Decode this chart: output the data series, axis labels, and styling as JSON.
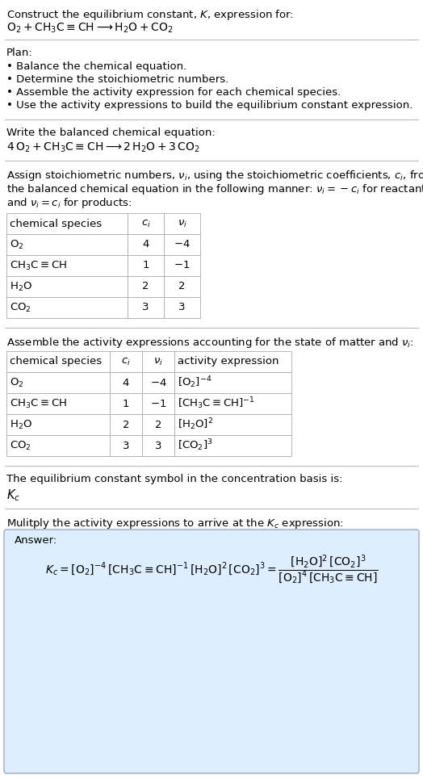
{
  "bg_color": "#ffffff",
  "title_line1": "Construct the equilibrium constant, $K$, expression for:",
  "reaction_unbalanced": "$\\mathrm{O_2 + CH_3C{\\equiv}CH \\longrightarrow H_2O + CO_2}$",
  "plan_header": "Plan:",
  "plan_items": [
    "• Balance the chemical equation.",
    "• Determine the stoichiometric numbers.",
    "• Assemble the activity expression for each chemical species.",
    "• Use the activity expressions to build the equilibrium constant expression."
  ],
  "balanced_header": "Write the balanced chemical equation:",
  "reaction_balanced": "$\\mathrm{4\\,O_2 + CH_3C{\\equiv}CH \\longrightarrow 2\\,H_2O + 3\\,CO_2}$",
  "table1_cols": [
    "chemical species",
    "$c_i$",
    "$\\nu_i$"
  ],
  "table1_rows": [
    [
      "$\\mathrm{O_2}$",
      "4",
      "$-4$"
    ],
    [
      "$\\mathrm{CH_3C{\\equiv}CH}$",
      "1",
      "$-1$"
    ],
    [
      "$\\mathrm{H_2O}$",
      "2",
      "2"
    ],
    [
      "$\\mathrm{CO_2}$",
      "3",
      "3"
    ]
  ],
  "activity_header": "Assemble the activity expressions accounting for the state of matter and $\\nu_i$:",
  "table2_cols": [
    "chemical species",
    "$c_i$",
    "$\\nu_i$",
    "activity expression"
  ],
  "table2_rows": [
    [
      "$\\mathrm{O_2}$",
      "4",
      "$-4$",
      "$[\\mathrm{O_2}]^{-4}$"
    ],
    [
      "$\\mathrm{CH_3C{\\equiv}CH}$",
      "1",
      "$-1$",
      "$[\\mathrm{CH_3C{\\equiv}CH}]^{-1}$"
    ],
    [
      "$\\mathrm{H_2O}$",
      "2",
      "2",
      "$[\\mathrm{H_2O}]^2$"
    ],
    [
      "$\\mathrm{CO_2}$",
      "3",
      "3",
      "$[\\mathrm{CO_2}]^3$"
    ]
  ],
  "kc_symbol_text": "The equilibrium constant symbol in the concentration basis is:",
  "kc_symbol": "$K_c$",
  "multiply_header": "Mulitply the activity expressions to arrive at the $K_c$ expression:",
  "answer_label": "Answer:",
  "answer_box_color": "#ddeeff",
  "answer_box_edge": "#99aacc",
  "kc_line1": "$K_c = [\\mathrm{O_2}]^{-4}\\,[\\mathrm{CH_3C{\\equiv}CH}]^{-1}\\,[\\mathrm{H_2O}]^2\\,[\\mathrm{CO_2}]^3 = \\dfrac{[\\mathrm{H_2O}]^2\\,[\\mathrm{CO_2}]^3}{[\\mathrm{O_2}]^4\\,[\\mathrm{CH_3C{\\equiv}CH}]}$",
  "font_size": 9.5,
  "line_sep": 17
}
